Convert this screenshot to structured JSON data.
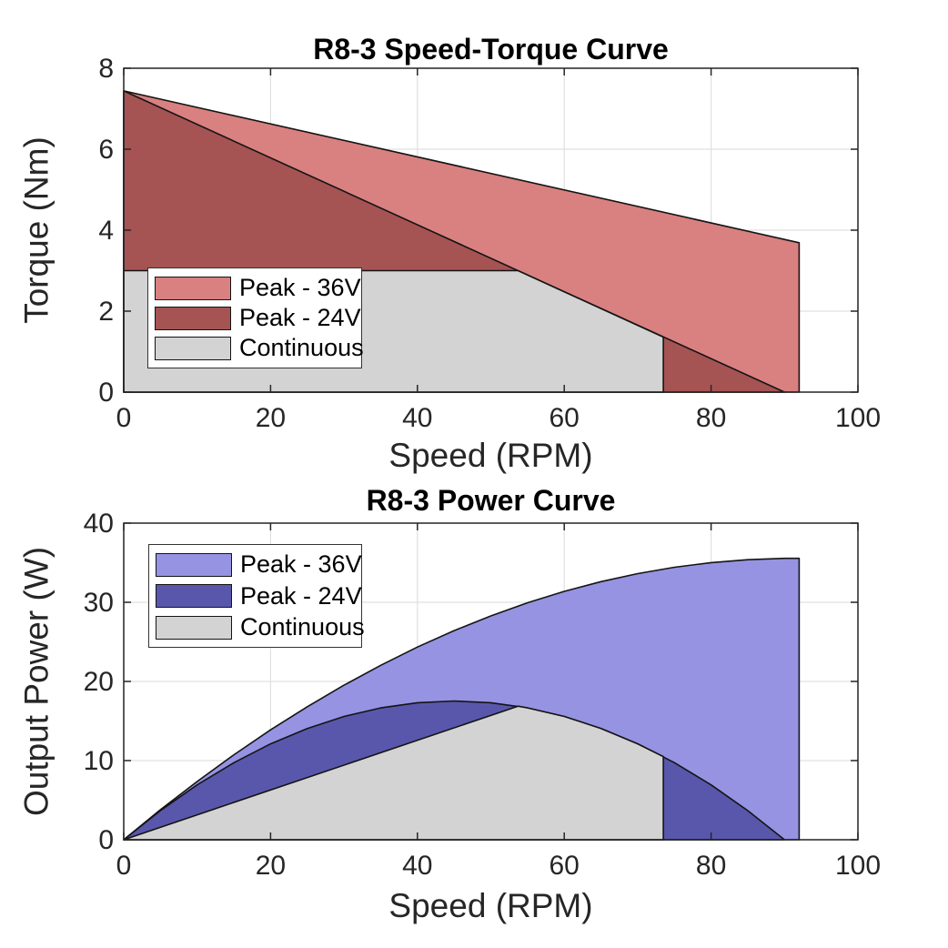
{
  "figure": {
    "background": "#ffffff",
    "axis_color": "#262626",
    "grid_color": "#e0e0e0",
    "outline_color": "#141414",
    "tick_label_color": "#262626"
  },
  "chart_data": [
    {
      "type": "area",
      "title": "R8-3 Speed-Torque Curve",
      "xlabel": "Speed (RPM)",
      "ylabel": "Torque (Nm)",
      "xlim": [
        0,
        100
      ],
      "ylim": [
        0,
        8
      ],
      "xticks": [
        0,
        20,
        40,
        60,
        80,
        100
      ],
      "yticks": [
        0,
        2,
        4,
        6,
        8
      ],
      "grid": true,
      "legend_location": "west",
      "legend_labels": [
        "Peak - 36V",
        "Peak - 24V",
        "Continuous"
      ],
      "series": [
        {
          "name": "Peak - 36V",
          "fill": "#d98080",
          "points": [
            [
              0,
              0
            ],
            [
              0,
              7.44
            ],
            [
              92,
              3.69
            ],
            [
              92,
              0
            ]
          ]
        },
        {
          "name": "Peak - 24V",
          "fill": "#a65353",
          "points": [
            [
              0,
              0
            ],
            [
              0,
              7.44
            ],
            [
              90,
              0
            ]
          ]
        },
        {
          "name": "Continuous",
          "fill": "#d3d3d3",
          "points": [
            [
              0,
              0
            ],
            [
              0,
              3
            ],
            [
              53.7,
              3
            ],
            [
              73.5,
              1.36
            ],
            [
              73.5,
              0
            ]
          ]
        }
      ]
    },
    {
      "type": "area",
      "title": "R8-3 Power Curve",
      "xlabel": "Speed (RPM)",
      "ylabel": "Output Power (W)",
      "xlim": [
        0,
        100
      ],
      "ylim": [
        0,
        40
      ],
      "xticks": [
        0,
        20,
        40,
        60,
        80,
        100
      ],
      "yticks": [
        0,
        10,
        20,
        30,
        40
      ],
      "grid": true,
      "legend_location": "northwest",
      "legend_labels": [
        "Peak - 36V",
        "Peak - 24V",
        "Continuous"
      ],
      "series": [
        {
          "name": "Peak - 36V",
          "fill": "#9593e2",
          "points": [
            [
              0,
              0
            ],
            [
              5,
              3.79
            ],
            [
              10,
              7.36
            ],
            [
              15,
              10.73
            ],
            [
              20,
              13.88
            ],
            [
              25,
              16.81
            ],
            [
              30,
              19.53
            ],
            [
              35,
              22.04
            ],
            [
              40,
              24.34
            ],
            [
              45,
              26.42
            ],
            [
              50,
              28.28
            ],
            [
              55,
              29.94
            ],
            [
              60,
              31.38
            ],
            [
              65,
              32.61
            ],
            [
              70,
              33.62
            ],
            [
              75,
              34.42
            ],
            [
              80,
              35.01
            ],
            [
              85,
              35.38
            ],
            [
              90,
              35.55
            ],
            [
              92,
              35.55
            ],
            [
              92,
              0
            ]
          ]
        },
        {
          "name": "Peak - 24V",
          "fill": "#5957ac",
          "points": [
            [
              0,
              0
            ],
            [
              5,
              3.68
            ],
            [
              10,
              6.93
            ],
            [
              15,
              9.74
            ],
            [
              20,
              12.11
            ],
            [
              25,
              14.06
            ],
            [
              30,
              15.58
            ],
            [
              35,
              16.66
            ],
            [
              40,
              17.31
            ],
            [
              45,
              17.53
            ],
            [
              50,
              17.31
            ],
            [
              55,
              16.66
            ],
            [
              60,
              15.58
            ],
            [
              65,
              14.06
            ],
            [
              70,
              12.11
            ],
            [
              75,
              9.74
            ],
            [
              80,
              6.93
            ],
            [
              85,
              3.68
            ],
            [
              90,
              0
            ]
          ]
        },
        {
          "name": "Continuous",
          "fill": "#d3d3d3",
          "points": [
            [
              0,
              0
            ],
            [
              53.7,
              16.87
            ],
            [
              55,
              16.66
            ],
            [
              60,
              15.58
            ],
            [
              65,
              14.06
            ],
            [
              70,
              12.11
            ],
            [
              73.5,
              10.5
            ],
            [
              73.5,
              0
            ]
          ]
        }
      ]
    }
  ]
}
